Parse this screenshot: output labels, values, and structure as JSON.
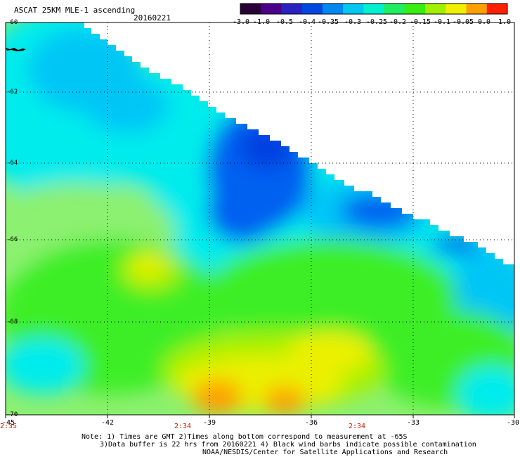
{
  "header": {
    "title": "ASCAT 25KM MLE-1 ascending",
    "date": "20160221"
  },
  "colorbar": {
    "labels": [
      "-3.0",
      "-1.0",
      "-0.5",
      "-0.4",
      "-0.35",
      "-0.3",
      "-0.25",
      "-0.2",
      "-0.15",
      "-0.1",
      "-0.05",
      "0.0",
      "1.0"
    ],
    "colors": [
      "#2a0038",
      "#4a0088",
      "#2a22c0",
      "#0046e0",
      "#0088f0",
      "#00c8f0",
      "#00f0d0",
      "#20ee60",
      "#38ee10",
      "#a0f000",
      "#f0f000",
      "#ffa000",
      "#ff2000"
    ]
  },
  "map": {
    "lat_labels": [
      "-60",
      "-62",
      "-64",
      "-66",
      "-68",
      "-70"
    ],
    "lon_labels": [
      "-45",
      "-42",
      "-39",
      "-36",
      "-33",
      "-30"
    ],
    "time_labels": [
      "2:35",
      "2:34",
      "2:34"
    ],
    "colors": {
      "light_green": "#8cf070",
      "green": "#3eee28",
      "lime": "#a8f000",
      "yellow": "#eaf000",
      "orange": "#ffa000",
      "cyan": "#00ecec",
      "sky": "#00c6f6",
      "blue": "#0060f0",
      "deep_blue": "#0040e0"
    }
  },
  "notes": {
    "line1": "Note: 1) Times are GMT 2)Times along bottom correspond to measurement at -65S",
    "line2": "3)Data buffer is 22 hrs from 20160221 4) Black wind barbs indicate possible contamination",
    "line3": "NOAA/NESDIS/Center for Satellite Applications and Research"
  }
}
